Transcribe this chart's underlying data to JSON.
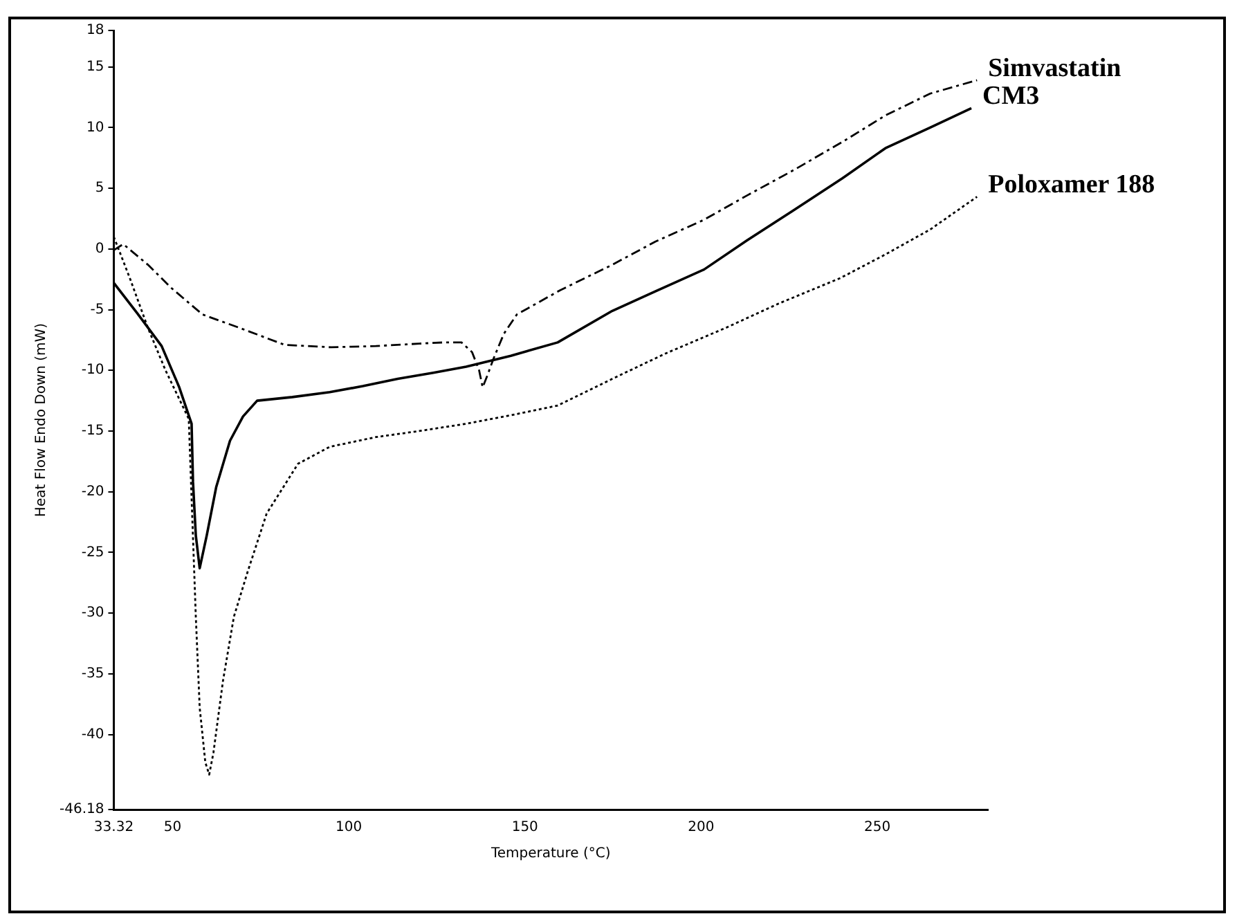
{
  "chart_data": {
    "type": "line",
    "xlabel": "Temperature (°C)",
    "ylabel": "Heat Flow Endo Down (mW)",
    "xlim": [
      33.32,
      281.4
    ],
    "xticks": [
      33.32,
      50,
      100,
      150,
      200,
      250
    ],
    "ylim": [
      -46.18,
      18
    ],
    "yticks": [
      -46.18,
      -40,
      -35,
      -30,
      -25,
      -20,
      -15,
      -10,
      -5,
      0,
      5,
      10,
      15,
      18
    ],
    "grid": false,
    "legend": false,
    "marker": "none",
    "series": [
      {
        "name": "Simvastatin",
        "color": "#000000",
        "line_style": "dashed",
        "x": [
          33.32,
          36,
          43,
          49.6,
          58.5,
          69,
          81.8,
          95,
          107.7,
          120,
          127,
          132,
          135,
          137,
          138,
          139.5,
          141,
          144,
          147.7,
          160,
          174.8,
          187,
          200.8,
          213,
          226.3,
          240,
          252.3,
          265,
          278.3
        ],
        "values": [
          -0.1,
          0.4,
          -1.3,
          -3.2,
          -5.4,
          -6.5,
          -7.9,
          -8.1,
          -8.0,
          -7.8,
          -7.7,
          -7.7,
          -8.5,
          -10,
          -11.4,
          -10.3,
          -9.1,
          -7,
          -5.4,
          -3.4,
          -1.3,
          0.6,
          2.4,
          4.4,
          6.5,
          8.8,
          11.0,
          12.8,
          13.9
        ]
      },
      {
        "name": "CM3",
        "color": "#000000",
        "line_style": "solid",
        "x": [
          33.32,
          40,
          46.9,
          51.9,
          55.4,
          55.8,
          56.6,
          57.7,
          59.7,
          62.4,
          66.3,
          70,
          74,
          84,
          94.6,
          104,
          113.9,
          124,
          133.3,
          146,
          159.3,
          174.8,
          187,
          200.8,
          213,
          226.3,
          240,
          252.3,
          265,
          276.7
        ],
        "values": [
          -2.8,
          -5.3,
          -8.0,
          -11.4,
          -14.4,
          -19.2,
          -23.6,
          -26.3,
          -23.6,
          -19.6,
          -15.8,
          -13.8,
          -12.5,
          -12.2,
          -11.8,
          -11.3,
          -10.7,
          -10.2,
          -9.7,
          -8.8,
          -7.7,
          -5.1,
          -3.5,
          -1.7,
          0.7,
          3.2,
          5.8,
          8.3,
          10.0,
          11.6
        ]
      },
      {
        "name": "Poloxamer 188",
        "color": "#000000",
        "line_style": "dotted",
        "x": [
          33.32,
          38,
          43,
          48,
          54.6,
          56.6,
          57.7,
          59.3,
          60.4,
          61.6,
          64.3,
          67.4,
          71.3,
          76.7,
          85.6,
          94.6,
          107.7,
          120,
          133.3,
          146,
          159.3,
          174.8,
          190,
          207,
          222,
          239.5,
          252,
          265,
          278.3
        ],
        "values": [
          1.0,
          -2.5,
          -6.5,
          -10,
          -14,
          -30.3,
          -37.8,
          -42.3,
          -43.3,
          -41.5,
          -35.6,
          -30.3,
          -26.6,
          -21.8,
          -17.7,
          -16.3,
          -15.5,
          -15.0,
          -14.4,
          -13.7,
          -12.9,
          -10.7,
          -8.6,
          -6.5,
          -4.5,
          -2.4,
          -0.5,
          1.6,
          4.3
        ]
      }
    ]
  }
}
